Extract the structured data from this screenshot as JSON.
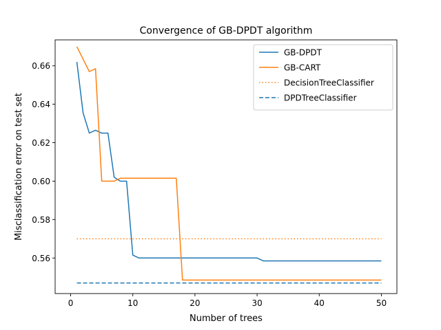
{
  "chart_data": {
    "type": "line",
    "title": "Convergence of GB-DPDT algorithm",
    "xlabel": "Number of trees",
    "ylabel": "Misclassification error on test set",
    "xlim": [
      -2.5,
      52.5
    ],
    "ylim": [
      0.5415,
      0.6735
    ],
    "xticks": [
      0,
      10,
      20,
      30,
      40,
      50
    ],
    "xtick_labels": [
      "0",
      "10",
      "20",
      "30",
      "40",
      "50"
    ],
    "yticks": [
      0.56,
      0.58,
      0.6,
      0.62,
      0.64,
      0.66
    ],
    "ytick_labels": [
      "0.56",
      "0.58",
      "0.60",
      "0.62",
      "0.64",
      "0.66"
    ],
    "grid": false,
    "legend_position": "top-right",
    "series": [
      {
        "name": "GB-DPDT",
        "color": "#1f77b4",
        "style": "solid",
        "x": [
          1,
          2,
          3,
          4,
          5,
          6,
          7,
          8,
          9,
          10,
          11,
          12,
          13,
          14,
          15,
          16,
          17,
          18,
          19,
          20,
          21,
          22,
          23,
          24,
          25,
          26,
          27,
          28,
          29,
          30,
          31,
          32,
          33,
          34,
          35,
          36,
          37,
          38,
          39,
          40,
          41,
          42,
          43,
          44,
          45,
          46,
          47,
          48,
          49,
          50
        ],
        "y": [
          0.662,
          0.6355,
          0.625,
          0.6265,
          0.625,
          0.625,
          0.602,
          0.6,
          0.6,
          0.5615,
          0.56,
          0.56,
          0.56,
          0.56,
          0.56,
          0.56,
          0.56,
          0.56,
          0.56,
          0.56,
          0.56,
          0.56,
          0.56,
          0.56,
          0.56,
          0.56,
          0.56,
          0.56,
          0.56,
          0.56,
          0.5585,
          0.5585,
          0.5585,
          0.5585,
          0.5585,
          0.5585,
          0.5585,
          0.5585,
          0.5585,
          0.5585,
          0.5585,
          0.5585,
          0.5585,
          0.5585,
          0.5585,
          0.5585,
          0.5585,
          0.5585,
          0.5585,
          0.5585
        ]
      },
      {
        "name": "GB-CART",
        "color": "#ff7f0e",
        "style": "solid",
        "x": [
          1,
          2,
          3,
          4,
          5,
          6,
          7,
          8,
          9,
          10,
          11,
          12,
          13,
          14,
          15,
          16,
          17,
          18,
          19,
          20,
          21,
          22,
          23,
          24,
          25,
          26,
          27,
          28,
          29,
          30,
          31,
          32,
          33,
          34,
          35,
          36,
          37,
          38,
          39,
          40,
          41,
          42,
          43,
          44,
          45,
          46,
          47,
          48,
          49,
          50
        ],
        "y": [
          0.67,
          0.6635,
          0.657,
          0.6585,
          0.6,
          0.6,
          0.6,
          0.6015,
          0.6015,
          0.6015,
          0.6015,
          0.6015,
          0.6015,
          0.6015,
          0.6015,
          0.6015,
          0.6015,
          0.5485,
          0.5485,
          0.5485,
          0.5485,
          0.5485,
          0.5485,
          0.5485,
          0.5485,
          0.5485,
          0.5485,
          0.5485,
          0.5485,
          0.5485,
          0.5485,
          0.5485,
          0.5485,
          0.5485,
          0.5485,
          0.5485,
          0.5485,
          0.5485,
          0.5485,
          0.5485,
          0.5485,
          0.5485,
          0.5485,
          0.5485,
          0.5485,
          0.5485,
          0.5485,
          0.5485,
          0.5485,
          0.5485
        ]
      },
      {
        "name": "DecisionTreeClassifier",
        "color": "#ff7f0e",
        "style": "dotted",
        "x": [
          1,
          50
        ],
        "y": [
          0.57,
          0.57
        ]
      },
      {
        "name": "DPDTreeClassifier",
        "color": "#1f77b4",
        "style": "dashed",
        "x": [
          1,
          50
        ],
        "y": [
          0.547,
          0.547
        ]
      }
    ]
  }
}
